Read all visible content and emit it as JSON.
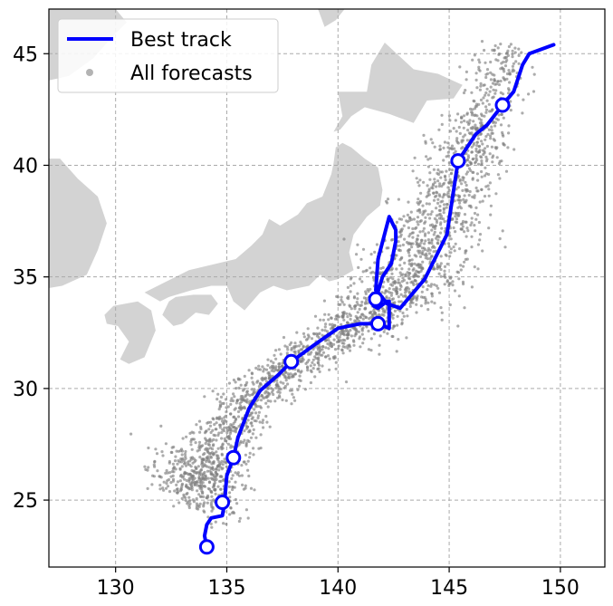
{
  "chart_data": {
    "type": "scatter",
    "title": "",
    "xlabel": "",
    "ylabel": "",
    "xlim": [
      127,
      152
    ],
    "ylim": [
      22,
      47
    ],
    "x_ticks": [
      130,
      135,
      140,
      145,
      150
    ],
    "y_ticks": [
      25,
      30,
      35,
      40,
      45
    ],
    "x_tick_labels": [
      "130",
      "135",
      "140",
      "145",
      "150"
    ],
    "y_tick_labels": [
      "25",
      "30",
      "35",
      "40",
      "45"
    ],
    "grid": true,
    "legend_position": "top-left",
    "legend": [
      {
        "label": "Best track",
        "marker": "line",
        "color": "#0000ff"
      },
      {
        "label": "All forecasts",
        "marker": "dot",
        "color": "#808080"
      }
    ],
    "series": [
      {
        "name": "Best track",
        "color": "#0000ff",
        "lon": [
          134.1,
          134.0,
          134.1,
          134.3,
          134.8,
          134.9,
          135.0,
          135.3,
          135.5,
          136.0,
          136.5,
          137.3,
          137.9,
          139.0,
          140.0,
          141.0,
          141.8,
          142.3,
          142.3,
          142.2,
          141.8,
          141.6,
          141.7,
          142.0,
          142.4,
          142.6,
          142.6,
          142.3,
          141.8,
          141.7,
          141.9,
          142.2,
          142.8,
          143.9,
          144.9,
          145.4,
          146.2,
          146.7,
          147.4,
          147.9,
          148.3,
          148.6,
          149.7
        ],
        "lat": [
          22.9,
          23.4,
          23.9,
          24.2,
          24.3,
          24.9,
          26.1,
          26.9,
          27.8,
          29.1,
          29.9,
          30.6,
          31.2,
          32.0,
          32.7,
          32.9,
          32.9,
          32.7,
          33.9,
          33.9,
          33.6,
          33.7,
          34.0,
          35.0,
          35.6,
          36.6,
          37.1,
          37.7,
          35.8,
          34.4,
          34.2,
          33.8,
          33.6,
          34.9,
          36.9,
          40.2,
          41.4,
          41.8,
          42.7,
          43.3,
          44.5,
          45.0,
          45.4
        ],
        "markers": [
          {
            "lon": 134.1,
            "lat": 22.9
          },
          {
            "lon": 134.8,
            "lat": 24.9
          },
          {
            "lon": 135.3,
            "lat": 26.9
          },
          {
            "lon": 137.9,
            "lat": 31.2
          },
          {
            "lon": 141.8,
            "lat": 32.9
          },
          {
            "lon": 141.7,
            "lat": 34.0
          },
          {
            "lon": 145.4,
            "lat": 40.2
          },
          {
            "lon": 147.4,
            "lat": 42.7
          }
        ]
      },
      {
        "name": "All forecasts",
        "color": "#808080",
        "cloud_centerline": [
          {
            "lon": 133.3,
            "lat": 24.9,
            "half_width": 1.5,
            "weight": 2.2
          },
          {
            "lon": 134.2,
            "lat": 26.8,
            "half_width": 1.1,
            "weight": 1.4
          },
          {
            "lon": 135.8,
            "lat": 29.3,
            "half_width": 0.8,
            "weight": 1.1
          },
          {
            "lon": 137.8,
            "lat": 31.0,
            "half_width": 0.6,
            "weight": 1.0
          },
          {
            "lon": 140.2,
            "lat": 32.6,
            "half_width": 0.7,
            "weight": 1.1
          },
          {
            "lon": 142.6,
            "lat": 34.2,
            "half_width": 1.2,
            "weight": 1.6
          },
          {
            "lon": 144.2,
            "lat": 36.2,
            "half_width": 1.5,
            "weight": 1.4
          },
          {
            "lon": 145.2,
            "lat": 39.1,
            "half_width": 1.2,
            "weight": 1.4
          },
          {
            "lon": 146.6,
            "lat": 42.0,
            "half_width": 0.9,
            "weight": 1.1
          },
          {
            "lon": 147.6,
            "lat": 45.3,
            "half_width": 0.8,
            "weight": 0.4
          }
        ]
      }
    ],
    "land_color": "#d3d3d3",
    "land_polygons": [
      {
        "name": "korea-peninsula",
        "lonlat": [
          [
            127,
            47
          ],
          [
            130,
            47
          ],
          [
            130.5,
            46.4
          ],
          [
            129.8,
            45.7
          ],
          [
            129.0,
            44.8
          ],
          [
            127.9,
            44.0
          ],
          [
            127,
            43.8
          ]
        ]
      },
      {
        "name": "korea-south",
        "lonlat": [
          [
            127,
            40.3
          ],
          [
            127.5,
            40.3
          ],
          [
            128.3,
            39.4
          ],
          [
            129.2,
            38.6
          ],
          [
            129.6,
            37.4
          ],
          [
            129.2,
            36.2
          ],
          [
            128.7,
            35.1
          ],
          [
            127.6,
            34.6
          ],
          [
            127,
            34.5
          ]
        ]
      },
      {
        "name": "honshu",
        "lonlat": [
          [
            132.0,
            33.9
          ],
          [
            131.3,
            34.3
          ],
          [
            133.3,
            35.3
          ],
          [
            135.4,
            35.8
          ],
          [
            136.1,
            36.4
          ],
          [
            136.6,
            36.9
          ],
          [
            136.9,
            37.6
          ],
          [
            137.4,
            37.3
          ],
          [
            138.2,
            37.8
          ],
          [
            138.6,
            38.3
          ],
          [
            139.3,
            38.6
          ],
          [
            139.7,
            39.6
          ],
          [
            139.8,
            40.1
          ],
          [
            139.9,
            40.8
          ],
          [
            140.2,
            41.0
          ],
          [
            140.6,
            40.8
          ],
          [
            141.2,
            40.3
          ],
          [
            141.8,
            39.9
          ],
          [
            142.0,
            38.9
          ],
          [
            141.9,
            38.2
          ],
          [
            141.3,
            37.7
          ],
          [
            140.7,
            36.9
          ],
          [
            140.5,
            36.1
          ],
          [
            140.7,
            35.3
          ],
          [
            140.0,
            34.9
          ],
          [
            139.6,
            34.8
          ],
          [
            139.2,
            35.1
          ],
          [
            138.7,
            34.6
          ],
          [
            137.7,
            34.4
          ],
          [
            137.1,
            34.6
          ],
          [
            136.5,
            34.3
          ],
          [
            135.8,
            33.5
          ],
          [
            135.3,
            33.9
          ],
          [
            135.0,
            34.6
          ],
          [
            134.3,
            34.6
          ],
          [
            133.4,
            34.4
          ],
          [
            132.4,
            34.1
          ]
        ]
      },
      {
        "name": "hokkaido",
        "lonlat": [
          [
            139.8,
            41.5
          ],
          [
            140.2,
            42.2
          ],
          [
            140.0,
            43.3
          ],
          [
            141.3,
            43.3
          ],
          [
            141.5,
            44.5
          ],
          [
            142.1,
            45.5
          ],
          [
            143.4,
            44.3
          ],
          [
            144.5,
            44.1
          ],
          [
            145.6,
            43.6
          ],
          [
            145.2,
            43.0
          ],
          [
            144.0,
            42.9
          ],
          [
            143.4,
            41.9
          ],
          [
            142.3,
            42.3
          ],
          [
            141.2,
            42.6
          ],
          [
            140.6,
            42.2
          ],
          [
            140.1,
            41.6
          ]
        ]
      },
      {
        "name": "shikoku",
        "lonlat": [
          [
            132.4,
            33.9
          ],
          [
            132.1,
            33.3
          ],
          [
            132.6,
            32.8
          ],
          [
            133.0,
            32.9
          ],
          [
            133.6,
            33.4
          ],
          [
            134.2,
            33.3
          ],
          [
            134.6,
            33.8
          ],
          [
            134.3,
            34.2
          ],
          [
            133.5,
            34.2
          ],
          [
            132.7,
            34.1
          ]
        ]
      },
      {
        "name": "kyushu",
        "lonlat": [
          [
            129.5,
            33.3
          ],
          [
            129.9,
            33.7
          ],
          [
            131.0,
            33.9
          ],
          [
            131.6,
            33.5
          ],
          [
            131.8,
            32.6
          ],
          [
            131.3,
            31.4
          ],
          [
            130.6,
            31.1
          ],
          [
            130.2,
            31.3
          ],
          [
            130.6,
            32.1
          ],
          [
            130.1,
            32.8
          ],
          [
            129.6,
            32.9
          ]
        ]
      },
      {
        "name": "sakhalin-strip",
        "lonlat": [
          [
            139.1,
            47
          ],
          [
            140.3,
            47
          ],
          [
            139.9,
            46.5
          ],
          [
            139.4,
            46.2
          ]
        ]
      }
    ]
  }
}
